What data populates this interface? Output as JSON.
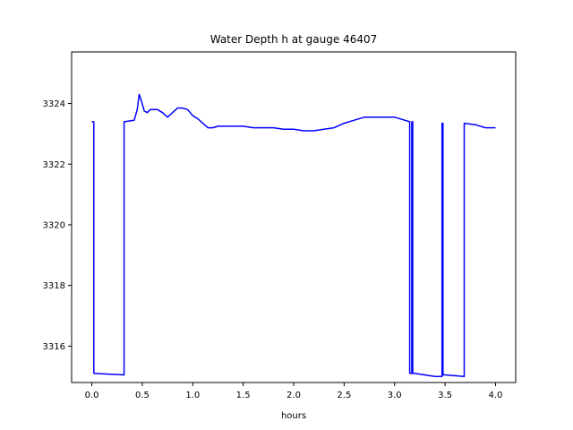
{
  "chart_data": {
    "type": "line",
    "title": "Water Depth h at gauge 46407",
    "xlabel": "hours",
    "ylabel": "",
    "xlim": [
      -0.2,
      4.2
    ],
    "ylim": [
      3314.8,
      3325.7
    ],
    "xticks": [
      0.0,
      0.5,
      1.0,
      1.5,
      2.0,
      2.5,
      3.0,
      3.5,
      4.0
    ],
    "xtick_labels": [
      "0.0",
      "0.5",
      "1.0",
      "1.5",
      "2.0",
      "2.5",
      "3.0",
      "3.5",
      "4.0"
    ],
    "yticks": [
      3316,
      3318,
      3320,
      3322,
      3324
    ],
    "ytick_labels": [
      "3316",
      "3318",
      "3320",
      "3322",
      "3324"
    ],
    "grid": false,
    "series": [
      {
        "color": "#0000ff",
        "x": [
          0.0,
          0.02,
          0.02,
          0.32,
          0.32,
          0.42,
          0.45,
          0.47,
          0.49,
          0.52,
          0.55,
          0.58,
          0.6,
          0.65,
          0.7,
          0.75,
          0.8,
          0.85,
          0.9,
          0.95,
          1.0,
          1.05,
          1.1,
          1.15,
          1.2,
          1.25,
          1.3,
          1.35,
          1.4,
          1.45,
          1.5,
          1.6,
          1.7,
          1.8,
          1.9,
          2.0,
          2.1,
          2.2,
          2.3,
          2.4,
          2.5,
          2.6,
          2.7,
          2.8,
          2.9,
          3.0,
          3.1,
          3.15,
          3.15,
          3.17,
          3.17,
          3.18,
          3.18,
          3.2,
          3.2,
          3.3,
          3.4,
          3.47,
          3.47,
          3.48,
          3.48,
          3.5,
          3.5,
          3.69,
          3.69,
          3.8,
          3.9,
          4.0
        ],
        "y": [
          3323.4,
          3323.4,
          3315.1,
          3315.05,
          3323.4,
          3323.45,
          3323.8,
          3324.3,
          3324.1,
          3323.75,
          3323.7,
          3323.8,
          3323.8,
          3323.8,
          3323.7,
          3323.55,
          3323.7,
          3323.85,
          3323.85,
          3323.8,
          3323.6,
          3323.5,
          3323.35,
          3323.2,
          3323.2,
          3323.25,
          3323.25,
          3323.25,
          3323.25,
          3323.25,
          3323.25,
          3323.2,
          3323.2,
          3323.2,
          3323.15,
          3323.15,
          3323.1,
          3323.1,
          3323.15,
          3323.2,
          3323.35,
          3323.45,
          3323.55,
          3323.55,
          3323.55,
          3323.55,
          3323.45,
          3323.4,
          3315.1,
          3315.1,
          3323.4,
          3323.4,
          3315.1,
          3315.1,
          3315.1,
          3315.05,
          3315.0,
          3315.0,
          3323.35,
          3323.35,
          3315.05,
          3315.05,
          3315.05,
          3315.0,
          3323.35,
          3323.3,
          3323.2,
          3323.2
        ]
      }
    ]
  }
}
